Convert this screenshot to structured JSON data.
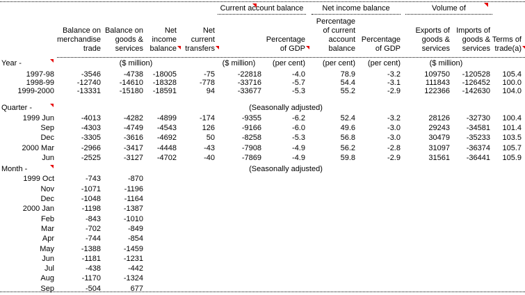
{
  "colors": {
    "background": "#ffffff",
    "text": "#000000",
    "comment_marker": "#e60000",
    "rule": "#000000"
  },
  "groups": [
    {
      "name": "current-account-balance",
      "label": "Current account balance",
      "marker": true
    },
    {
      "name": "net-income-balance",
      "label": "Net income balance",
      "marker": false
    },
    {
      "name": "volume-of",
      "label": "Volume of",
      "marker": true
    }
  ],
  "columns": [
    {
      "name": "period",
      "label": ""
    },
    {
      "name": "balance-merchandise-trade",
      "label": "Balance on\nmerchandise\ntrade",
      "marker": false
    },
    {
      "name": "balance-goods-services",
      "label": "Balance on\ngoods &\nservices",
      "marker": false
    },
    {
      "name": "net-income-balance",
      "label": "Net\nincome\nbalance",
      "marker": true
    },
    {
      "name": "net-current-transfers",
      "label": "Net\ncurrent\ntransfers",
      "marker": true
    },
    {
      "name": "current-account-balance-million",
      "label": "",
      "marker": false
    },
    {
      "name": "cab-percentage-of-gdp",
      "label": "Percentage\nof GDP",
      "marker": true
    },
    {
      "name": "nib-percentage-of-cab",
      "label": "Percentage\nof current\naccount\nbalance",
      "marker": false
    },
    {
      "name": "nib-percentage-of-gdp",
      "label": "Percentage\nof GDP",
      "marker": false
    },
    {
      "name": "exports-goods-services",
      "label": "Exports of\ngoods &\nservices",
      "marker": false
    },
    {
      "name": "imports-goods-services",
      "label": "Imports of\ngoods &\nservices",
      "marker": false
    },
    {
      "name": "terms-of-trade",
      "label": "Terms of\ntrade(a)",
      "marker": true
    }
  ],
  "rows": [
    {
      "type": "section",
      "section": "year",
      "label": "Year -",
      "marker": true,
      "units": [
        {
          "from": 1,
          "to": 4,
          "text": "($ million)",
          "align": "center"
        },
        {
          "from": 5,
          "to": 5,
          "text": "($ million)",
          "align": "center"
        },
        {
          "from": 6,
          "to": 6,
          "text": "(per cent)",
          "align": "right"
        },
        {
          "from": 7,
          "to": 7,
          "text": "(per cent)",
          "align": "right"
        },
        {
          "from": 8,
          "to": 8,
          "text": "(per cent)",
          "align": "right"
        },
        {
          "from": 9,
          "to": 10,
          "text": "($ million)",
          "align": "center"
        }
      ]
    },
    {
      "type": "data",
      "section": "year",
      "label": "1997-98",
      "values": [
        "-3546",
        "-4738",
        "-18005",
        "-75",
        "-22818",
        "-4.0",
        "78.9",
        "-3.2",
        "109750",
        "-120528",
        "105.4"
      ]
    },
    {
      "type": "data",
      "section": "year",
      "label": "1998-99",
      "values": [
        "-12740",
        "-14610",
        "-18328",
        "-778",
        "-33716",
        "-5.7",
        "54.4",
        "-3.1",
        "111843",
        "-126452",
        "100.0"
      ]
    },
    {
      "type": "data",
      "section": "year",
      "label": "1999-2000",
      "values": [
        "-13331",
        "-15180",
        "-18591",
        "94",
        "-33677",
        "-5.3",
        "55.2",
        "-2.9",
        "122366",
        "-142630",
        "104.0"
      ]
    },
    {
      "type": "gap",
      "section": "year"
    },
    {
      "type": "section",
      "section": "quarter",
      "label": "Quarter -",
      "marker": true,
      "units": [
        {
          "from": 5,
          "to": 7,
          "text": "(Seasonally adjusted)",
          "align": "center"
        }
      ]
    },
    {
      "type": "data",
      "section": "quarter",
      "label": "1999 Jun",
      "values": [
        "-4013",
        "-4282",
        "-4899",
        "-174",
        "-9355",
        "-6.2",
        "52.4",
        "-3.2",
        "28126",
        "-32730",
        "100.4"
      ]
    },
    {
      "type": "data",
      "section": "quarter",
      "label": "Sep",
      "values": [
        "-4303",
        "-4749",
        "-4543",
        "126",
        "-9166",
        "-6.0",
        "49.6",
        "-3.0",
        "29243",
        "-34581",
        "101.4"
      ]
    },
    {
      "type": "data",
      "section": "quarter",
      "label": "Dec",
      "values": [
        "-3305",
        "-3616",
        "-4692",
        "50",
        "-8258",
        "-5.3",
        "56.8",
        "-3.0",
        "30479",
        "-35233",
        "103.5"
      ]
    },
    {
      "type": "data",
      "section": "quarter",
      "label": "2000 Mar",
      "values": [
        "-2966",
        "-3417",
        "-4448",
        "-43",
        "-7908",
        "-4.9",
        "56.2",
        "-2.8",
        "31097",
        "-36374",
        "105.7"
      ]
    },
    {
      "type": "data",
      "section": "quarter",
      "label": "Jun",
      "values": [
        "-2525",
        "-3127",
        "-4702",
        "-40",
        "-7869",
        "-4.9",
        "59.8",
        "-2.9",
        "31561",
        "-36441",
        "105.9"
      ]
    },
    {
      "type": "gap",
      "section": "quarter"
    },
    {
      "type": "section",
      "section": "month",
      "label": "Month -",
      "marker": true,
      "units": [
        {
          "from": 5,
          "to": 7,
          "text": "(Seasonally adjusted)",
          "align": "center"
        }
      ]
    },
    {
      "type": "data",
      "section": "month",
      "label": "1999 Oct",
      "values": [
        "-743",
        "-870",
        "",
        "",
        "",
        "",
        "",
        "",
        "",
        "",
        ""
      ]
    },
    {
      "type": "data",
      "section": "month",
      "label": "Nov",
      "values": [
        "-1071",
        "-1196",
        "",
        "",
        "",
        "",
        "",
        "",
        "",
        "",
        ""
      ]
    },
    {
      "type": "data",
      "section": "month",
      "label": "Dec",
      "values": [
        "-1048",
        "-1164",
        "",
        "",
        "",
        "",
        "",
        "",
        "",
        "",
        ""
      ]
    },
    {
      "type": "data",
      "section": "month",
      "label": "2000 Jan",
      "values": [
        "-1198",
        "-1387",
        "",
        "",
        "",
        "",
        "",
        "",
        "",
        "",
        ""
      ]
    },
    {
      "type": "data",
      "section": "month",
      "label": "Feb",
      "values": [
        "-843",
        "-1010",
        "",
        "",
        "",
        "",
        "",
        "",
        "",
        "",
        ""
      ]
    },
    {
      "type": "data",
      "section": "month",
      "label": "Mar",
      "values": [
        "-702",
        "-849",
        "",
        "",
        "",
        "",
        "",
        "",
        "",
        "",
        ""
      ]
    },
    {
      "type": "data",
      "section": "month",
      "label": "Apr",
      "values": [
        "-744",
        "-854",
        "",
        "",
        "",
        "",
        "",
        "",
        "",
        "",
        ""
      ]
    },
    {
      "type": "data",
      "section": "month",
      "label": "May",
      "values": [
        "-1388",
        "-1459",
        "",
        "",
        "",
        "",
        "",
        "",
        "",
        "",
        ""
      ]
    },
    {
      "type": "data",
      "section": "month",
      "label": "Jun",
      "values": [
        "-1181",
        "-1231",
        "",
        "",
        "",
        "",
        "",
        "",
        "",
        "",
        ""
      ]
    },
    {
      "type": "data",
      "section": "month",
      "label": "Jul",
      "values": [
        "-438",
        "-442",
        "",
        "",
        "",
        "",
        "",
        "",
        "",
        "",
        ""
      ]
    },
    {
      "type": "data",
      "section": "month",
      "label": "Aug",
      "values": [
        "-1170",
        "-1324",
        "",
        "",
        "",
        "",
        "",
        "",
        "",
        "",
        ""
      ]
    },
    {
      "type": "data",
      "section": "month",
      "label": "Sep",
      "values": [
        "-504",
        "677",
        "",
        "",
        "",
        "",
        "",
        "",
        "",
        "",
        ""
      ]
    }
  ]
}
